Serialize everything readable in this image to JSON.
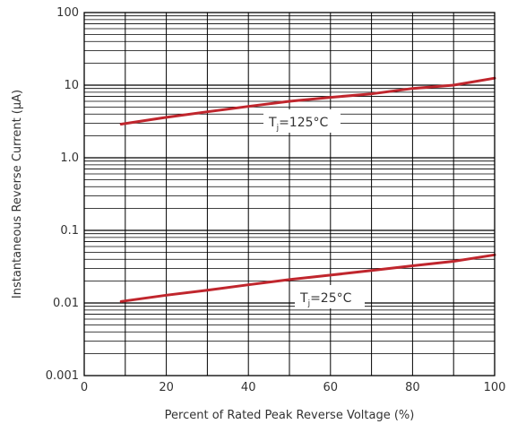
{
  "chart_data": {
    "type": "line",
    "xlabel": "Percent of Rated Peak Reverse Voltage (%)",
    "ylabel": "Instantaneous Reverse Current (μA)",
    "xlim": [
      0,
      100
    ],
    "ylim": [
      0.001,
      100
    ],
    "y_scale": "log",
    "grid": true,
    "x_ticks": [
      0,
      20,
      40,
      60,
      80,
      100
    ],
    "x_tick_labels": [
      "0",
      "20",
      "40",
      "60",
      "80",
      "100"
    ],
    "y_ticks": [
      0.001,
      0.01,
      0.1,
      1.0,
      10,
      100
    ],
    "y_tick_labels": [
      "0.001",
      "0.01",
      "0.1",
      "1.0",
      "10",
      "100"
    ],
    "series": [
      {
        "name": "Tj=125°C",
        "label_main": "T",
        "label_sub": "j",
        "label_rest": "=125°C",
        "color": "#c0262d",
        "x": [
          9,
          20,
          30,
          40,
          50,
          60,
          70,
          80,
          90,
          100
        ],
        "y": [
          2.9,
          3.6,
          4.3,
          5.1,
          6.0,
          6.8,
          7.6,
          9.0,
          10.0,
          12.5
        ]
      },
      {
        "name": "Tj=25°C",
        "label_main": "T",
        "label_sub": "j",
        "label_rest": "=25°C",
        "color": "#c0262d",
        "x": [
          9,
          20,
          30,
          40,
          50,
          60,
          70,
          80,
          90,
          100
        ],
        "y": [
          0.0105,
          0.0128,
          0.015,
          0.0178,
          0.021,
          0.0242,
          0.028,
          0.0325,
          0.0375,
          0.046
        ]
      }
    ]
  }
}
